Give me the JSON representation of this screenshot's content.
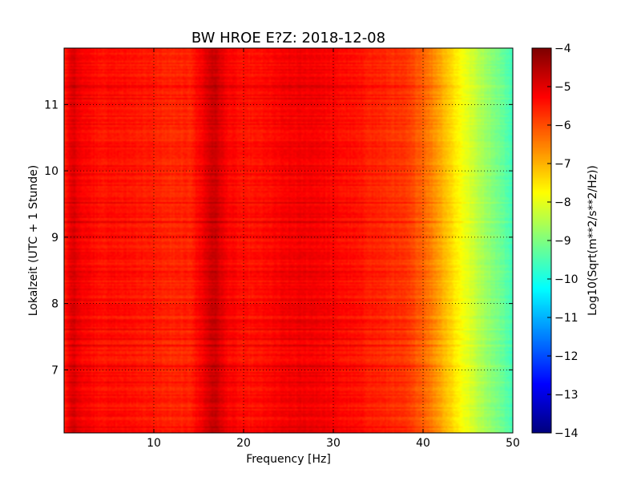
{
  "chart_data": {
    "type": "heatmap",
    "title": "BW HROE E?Z: 2018-12-08",
    "xlabel": "Frequency [Hz]",
    "ylabel": "Lokalzeit (UTC + 1 Stunde)",
    "xlim": [
      0,
      50
    ],
    "ylim": [
      11.85,
      6.05
    ],
    "y_inverted": true,
    "x_ticks": [
      10,
      20,
      30,
      40,
      50
    ],
    "y_ticks": [
      7,
      8,
      9,
      10,
      11
    ],
    "grid": true,
    "colormap": "jet",
    "colorbar": {
      "label": "Log10(Sqrt(m**2/s**2/Hz))",
      "range": [
        -14,
        -4
      ],
      "ticks": [
        -4,
        -5,
        -6,
        -7,
        -8,
        -9,
        -10,
        -11,
        -12,
        -13,
        -14
      ]
    },
    "spectrum_profile": {
      "frequency_hz": [
        0,
        0.5,
        1,
        2,
        4,
        6,
        8,
        10,
        12,
        14,
        15.5,
        16.5,
        17,
        18,
        20,
        22,
        25,
        28,
        30,
        32,
        35,
        38,
        40,
        42,
        44,
        46,
        48,
        50
      ],
      "log10_amplitude": [
        -5.7,
        -5.2,
        -4.9,
        -5.2,
        -5.4,
        -5.4,
        -5.45,
        -5.55,
        -5.65,
        -5.6,
        -5.15,
        -4.75,
        -4.8,
        -5.2,
        -5.45,
        -5.4,
        -5.2,
        -5.15,
        -5.3,
        -5.4,
        -5.6,
        -5.8,
        -6.2,
        -6.9,
        -7.7,
        -8.4,
        -9.0,
        -9.6
      ]
    }
  }
}
